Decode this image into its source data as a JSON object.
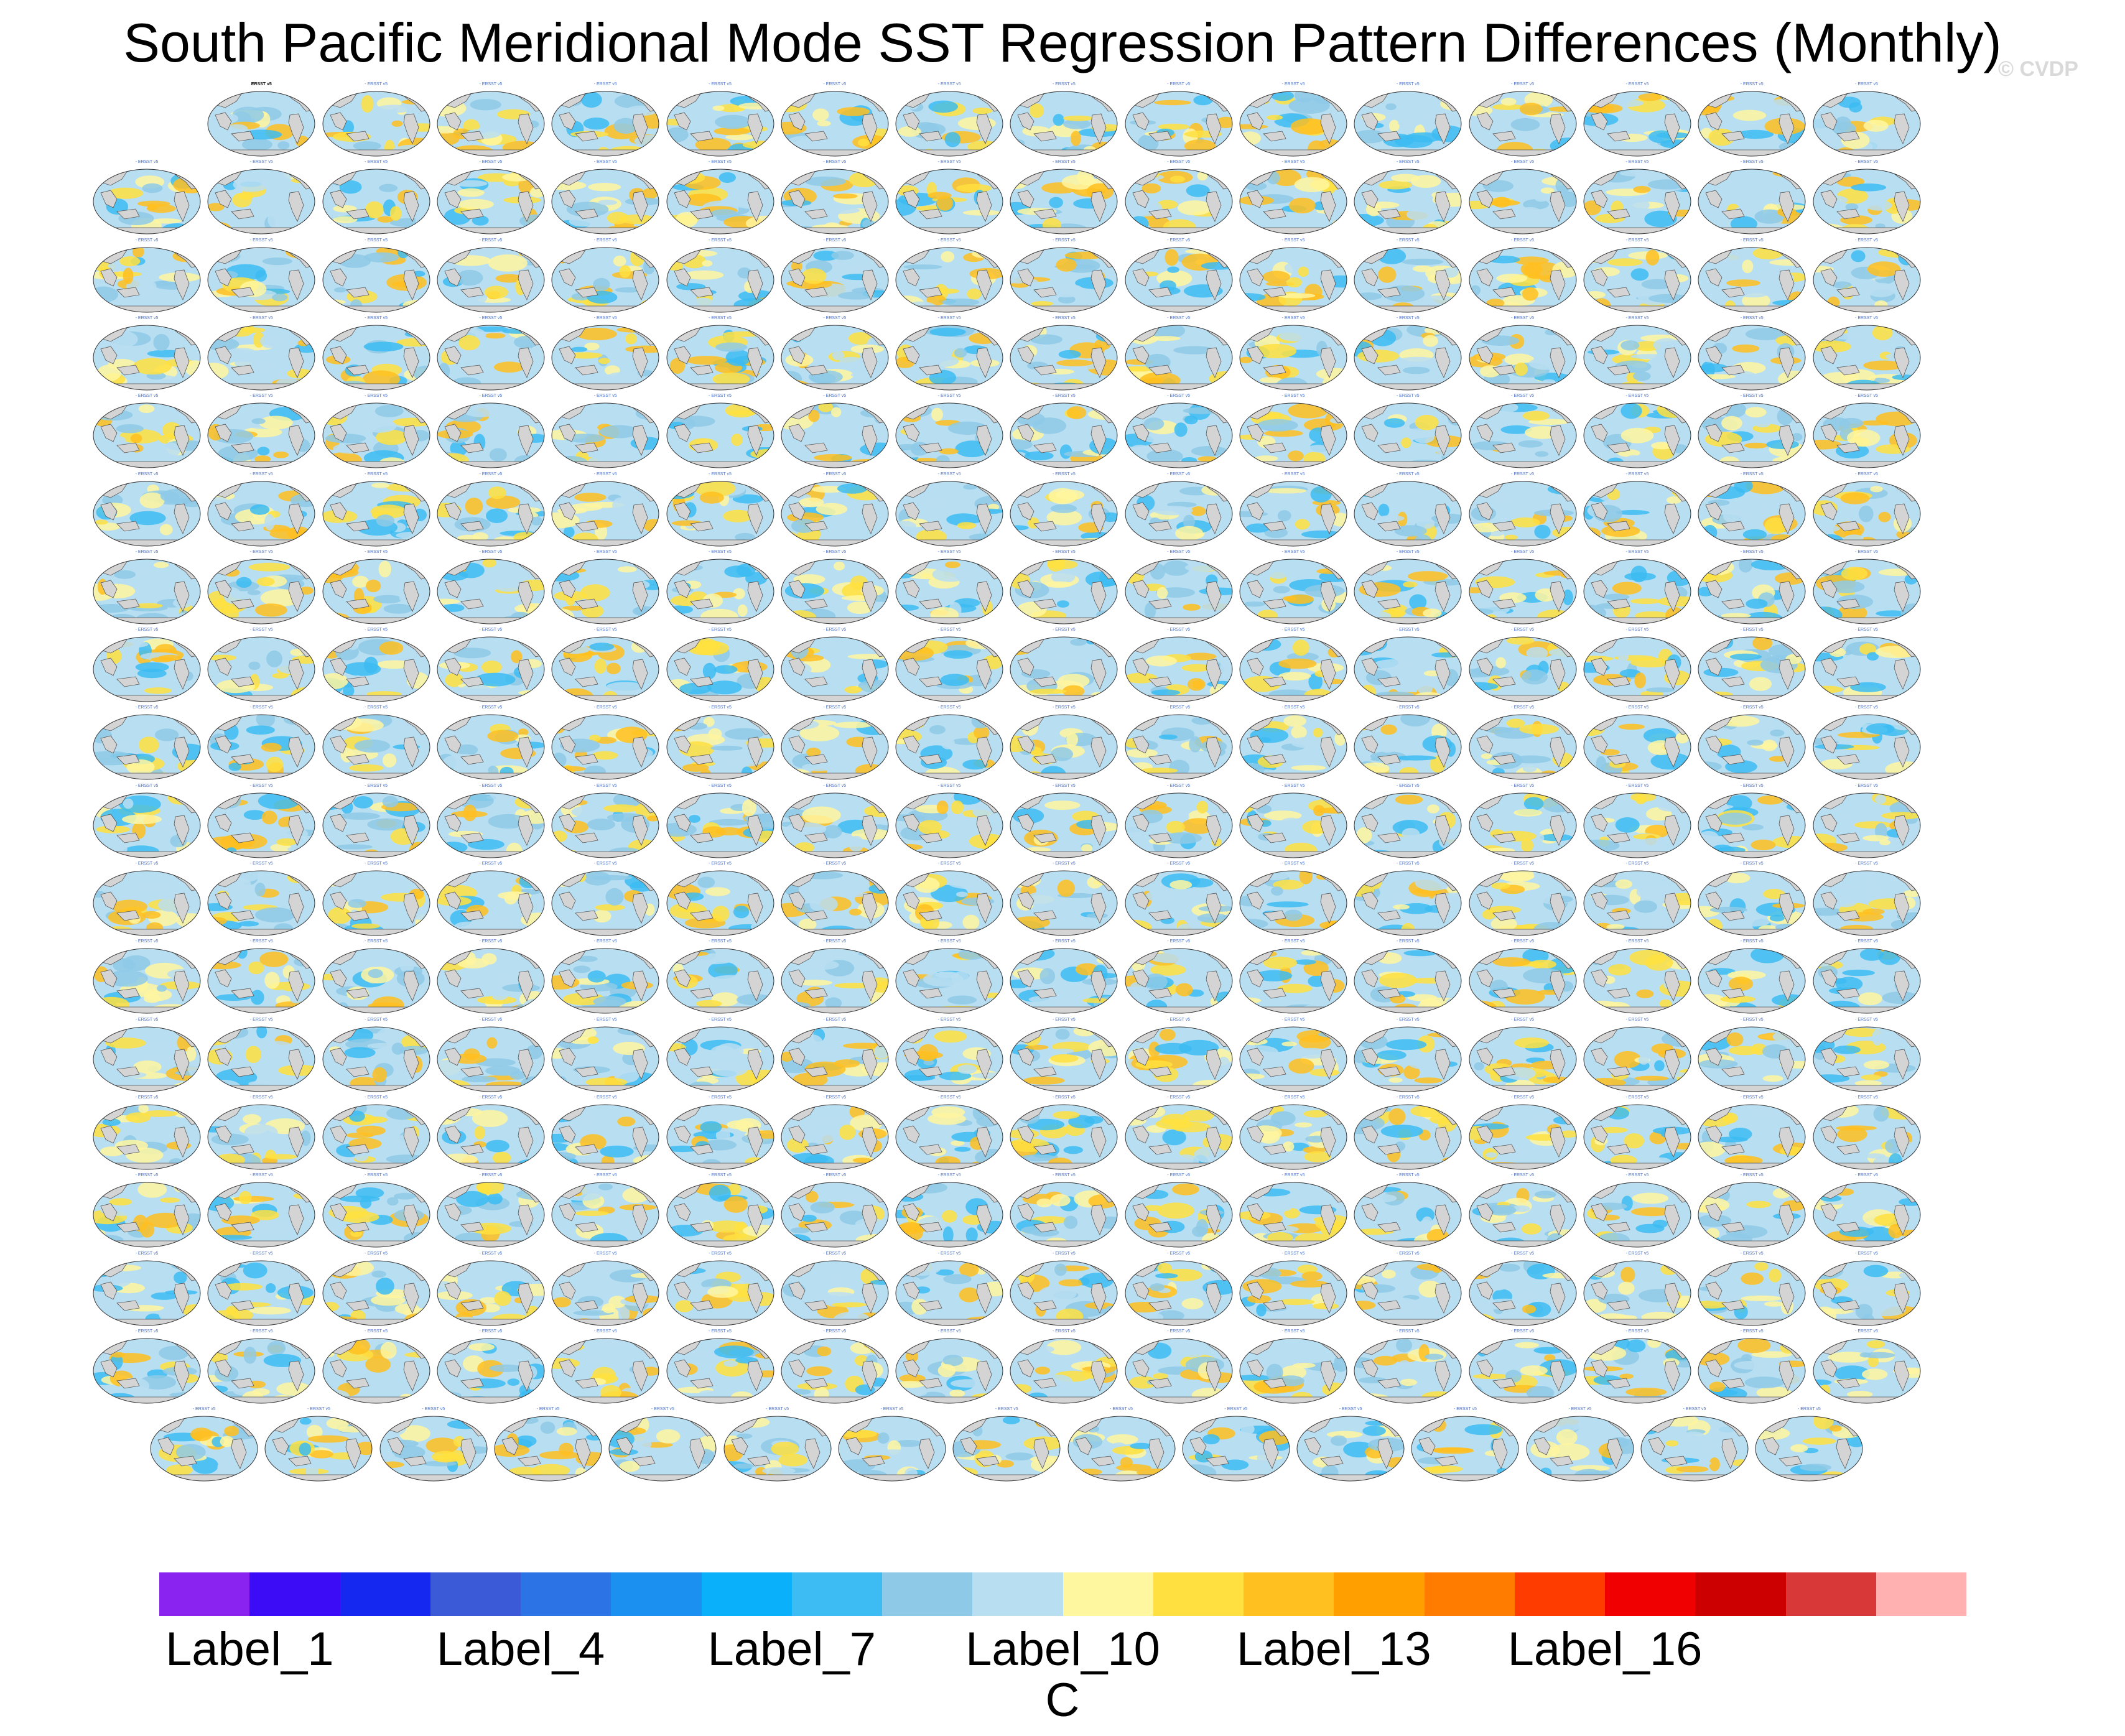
{
  "title": "South Pacific Meridional Mode SST Regression Pattern Differences (Monthly)",
  "watermark": "© CVDP",
  "chart_data": {
    "type": "heatmap",
    "title": "South Pacific Meridional Mode SST Regression Pattern Differences (Monthly)",
    "panel_grid": {
      "rows": [
        {
          "count": 15,
          "first_column": 2,
          "first_panel_is_observation": true
        },
        {
          "count": 16,
          "first_column": 1
        },
        {
          "count": 16,
          "first_column": 1
        },
        {
          "count": 16,
          "first_column": 1
        },
        {
          "count": 16,
          "first_column": 1
        },
        {
          "count": 16,
          "first_column": 1
        },
        {
          "count": 16,
          "first_column": 1
        },
        {
          "count": 16,
          "first_column": 1
        },
        {
          "count": 16,
          "first_column": 1
        },
        {
          "count": 16,
          "first_column": 1
        },
        {
          "count": 16,
          "first_column": 1
        },
        {
          "count": 16,
          "first_column": 1
        },
        {
          "count": 16,
          "first_column": 1
        },
        {
          "count": 16,
          "first_column": 1
        },
        {
          "count": 16,
          "first_column": 1
        },
        {
          "count": 16,
          "first_column": 1
        },
        {
          "count": 16,
          "first_column": 1
        },
        {
          "count": 15,
          "offset": "half-column"
        }
      ],
      "observation_panel_label": "ERSST v5",
      "model_panel_label_suffix": "- ERSST v5"
    },
    "colorbar": {
      "units": "C",
      "colors": [
        "#8a22f0",
        "#3b0cf5",
        "#1428f0",
        "#3a5ad8",
        "#2c74e6",
        "#1b90f0",
        "#0ab0fa",
        "#3cbcf2",
        "#8ecae8",
        "#b8def2",
        "#fff6a0",
        "#ffe040",
        "#ffc020",
        "#ffa000",
        "#ff7c00",
        "#ff3c00",
        "#f00000",
        "#cc0000",
        "#d83838",
        "#ffb0b0"
      ],
      "labels": [
        "Label_1",
        "Label_4",
        "Label_7",
        "Label_10",
        "Label_13",
        "Label_16"
      ],
      "label_bin_indices": [
        1,
        4,
        7,
        10,
        13,
        16
      ]
    }
  }
}
